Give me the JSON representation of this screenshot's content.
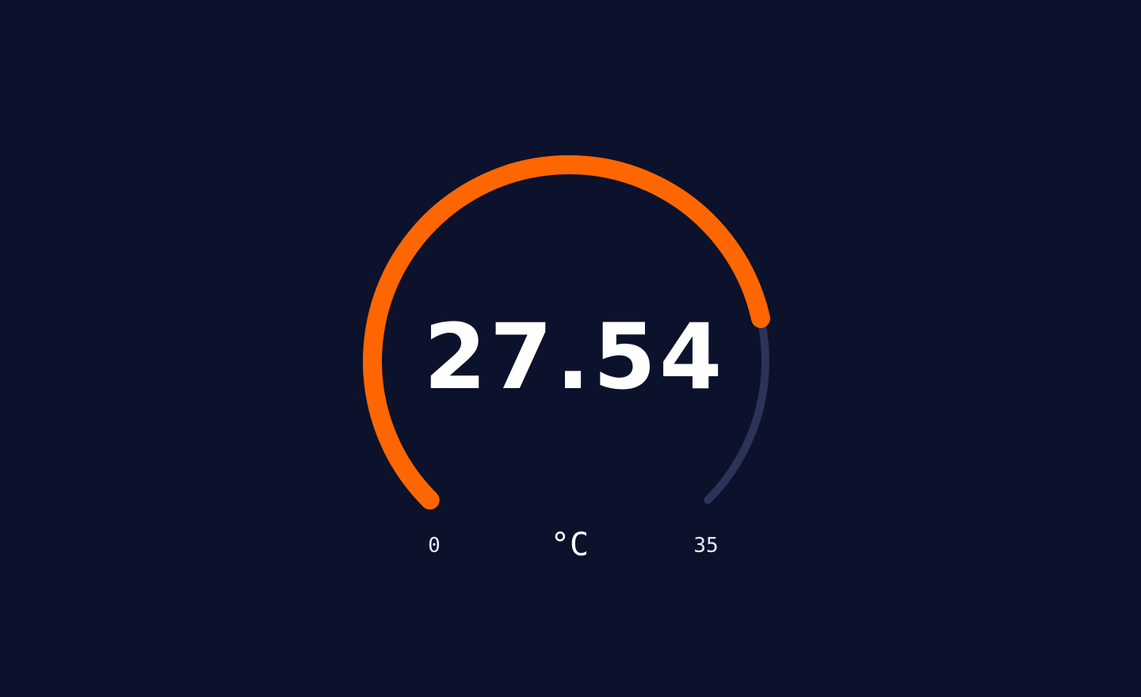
{
  "gauge": {
    "value": 27.54,
    "value_label": "27.54",
    "min": 0,
    "min_label": "0",
    "max": 35,
    "max_label": "35",
    "unit": "°C",
    "colors": {
      "background": "#0c122c",
      "fill": "#ff6600",
      "track": "#2b3458",
      "text": "#ffffff",
      "label": "#e8eaf2"
    }
  }
}
